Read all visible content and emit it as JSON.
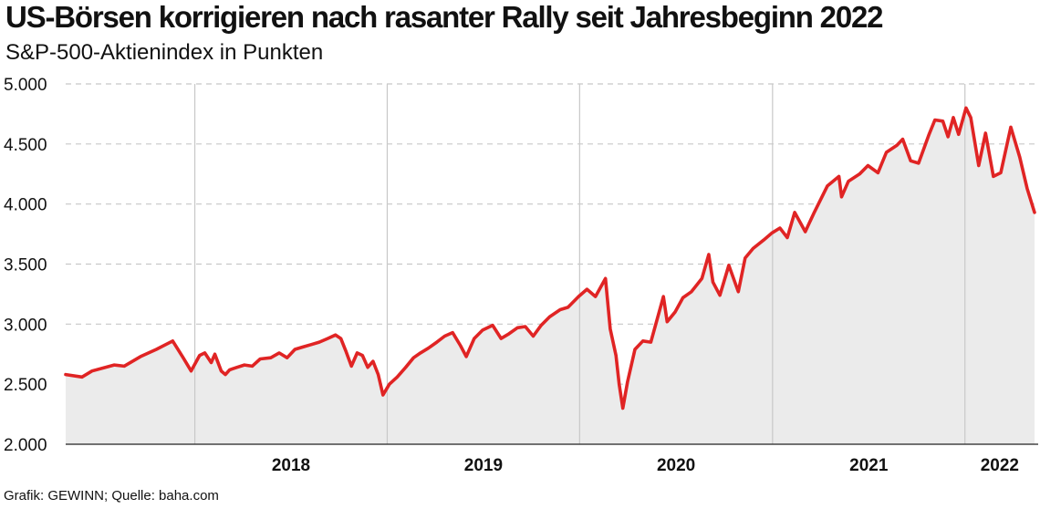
{
  "header": {
    "title": "US-Börsen korrigieren nach rasanter Rally seit Jahresbeginn 2022",
    "subtitle": "S&P-500-Aktienindex in Punkten"
  },
  "footer": {
    "source": "Grafik: GEWINN; Quelle: baha.com"
  },
  "colors": {
    "line": "#e02424",
    "area": "#ebebeb",
    "grid": "#c8c8c8",
    "axis": "#222222"
  },
  "chart_data": {
    "type": "area",
    "title": "US-Börsen korrigieren nach rasanter Rally seit Jahresbeginn 2022",
    "subtitle": "S&P-500-Aktienindex in Punkten",
    "ylim": [
      2000,
      5000
    ],
    "y_ticks": [
      2000,
      2500,
      3000,
      3500,
      4000,
      4500,
      5000
    ],
    "y_tick_labels": [
      "2.000",
      "2.500",
      "3.000",
      "3.500",
      "4.000",
      "4.500",
      "5.000"
    ],
    "x_tick_labels": [
      "2018",
      "2019",
      "2020",
      "2021",
      "2022"
    ],
    "xlim": [
      "2017-05-01",
      "2022-05-13"
    ],
    "year_boundaries": [
      "2018-01-01",
      "2019-01-01",
      "2020-01-01",
      "2021-01-01",
      "2022-01-01"
    ],
    "grid": true,
    "series": [
      {
        "points": [
          [
            "2017-05-01",
            2580
          ],
          [
            "2017-06-01",
            2560
          ],
          [
            "2017-06-20",
            2610
          ],
          [
            "2017-08-01",
            2660
          ],
          [
            "2017-08-20",
            2650
          ],
          [
            "2017-09-20",
            2730
          ],
          [
            "2017-10-20",
            2790
          ],
          [
            "2017-11-20",
            2860
          ],
          [
            "2017-12-10",
            2720
          ],
          [
            "2017-12-25",
            2610
          ],
          [
            "2018-01-10",
            2740
          ],
          [
            "2018-01-20",
            2760
          ],
          [
            "2018-02-01",
            2680
          ],
          [
            "2018-02-08",
            2750
          ],
          [
            "2018-02-20",
            2610
          ],
          [
            "2018-02-28",
            2580
          ],
          [
            "2018-03-08",
            2620
          ],
          [
            "2018-03-22",
            2640
          ],
          [
            "2018-04-05",
            2660
          ],
          [
            "2018-04-20",
            2650
          ],
          [
            "2018-05-05",
            2710
          ],
          [
            "2018-05-25",
            2720
          ],
          [
            "2018-06-10",
            2760
          ],
          [
            "2018-06-25",
            2720
          ],
          [
            "2018-07-10",
            2790
          ],
          [
            "2018-07-25",
            2810
          ],
          [
            "2018-08-10",
            2830
          ],
          [
            "2018-08-25",
            2850
          ],
          [
            "2018-09-10",
            2880
          ],
          [
            "2018-09-25",
            2910
          ],
          [
            "2018-10-05",
            2880
          ],
          [
            "2018-10-15",
            2770
          ],
          [
            "2018-10-25",
            2650
          ],
          [
            "2018-11-05",
            2760
          ],
          [
            "2018-11-15",
            2740
          ],
          [
            "2018-11-25",
            2640
          ],
          [
            "2018-12-05",
            2690
          ],
          [
            "2018-12-15",
            2580
          ],
          [
            "2018-12-24",
            2410
          ],
          [
            "2019-01-05",
            2500
          ],
          [
            "2019-01-20",
            2560
          ],
          [
            "2019-02-05",
            2640
          ],
          [
            "2019-02-20",
            2720
          ],
          [
            "2019-03-05",
            2760
          ],
          [
            "2019-03-20",
            2800
          ],
          [
            "2019-04-05",
            2850
          ],
          [
            "2019-04-20",
            2900
          ],
          [
            "2019-05-05",
            2930
          ],
          [
            "2019-05-20",
            2820
          ],
          [
            "2019-05-31",
            2730
          ],
          [
            "2019-06-15",
            2880
          ],
          [
            "2019-07-01",
            2950
          ],
          [
            "2019-07-20",
            2990
          ],
          [
            "2019-08-05",
            2880
          ],
          [
            "2019-08-20",
            2920
          ],
          [
            "2019-09-05",
            2970
          ],
          [
            "2019-09-20",
            2980
          ],
          [
            "2019-10-05",
            2900
          ],
          [
            "2019-10-20",
            2990
          ],
          [
            "2019-11-05",
            3060
          ],
          [
            "2019-11-25",
            3120
          ],
          [
            "2019-12-10",
            3140
          ],
          [
            "2019-12-30",
            3230
          ],
          [
            "2020-01-15",
            3290
          ],
          [
            "2020-01-31",
            3230
          ],
          [
            "2020-02-19",
            3380
          ],
          [
            "2020-02-28",
            2960
          ],
          [
            "2020-03-10",
            2740
          ],
          [
            "2020-03-16",
            2500
          ],
          [
            "2020-03-23",
            2300
          ],
          [
            "2020-04-01",
            2520
          ],
          [
            "2020-04-15",
            2790
          ],
          [
            "2020-04-30",
            2860
          ],
          [
            "2020-05-15",
            2850
          ],
          [
            "2020-06-08",
            3230
          ],
          [
            "2020-06-15",
            3020
          ],
          [
            "2020-06-30",
            3100
          ],
          [
            "2020-07-15",
            3220
          ],
          [
            "2020-07-31",
            3270
          ],
          [
            "2020-08-20",
            3380
          ],
          [
            "2020-09-02",
            3580
          ],
          [
            "2020-09-10",
            3350
          ],
          [
            "2020-09-23",
            3240
          ],
          [
            "2020-10-10",
            3490
          ],
          [
            "2020-10-28",
            3270
          ],
          [
            "2020-11-10",
            3550
          ],
          [
            "2020-11-25",
            3630
          ],
          [
            "2020-12-15",
            3700
          ],
          [
            "2020-12-31",
            3760
          ],
          [
            "2021-01-15",
            3800
          ],
          [
            "2021-01-29",
            3720
          ],
          [
            "2021-02-12",
            3930
          ],
          [
            "2021-03-04",
            3770
          ],
          [
            "2021-03-20",
            3920
          ],
          [
            "2021-04-15",
            4150
          ],
          [
            "2021-05-07",
            4230
          ],
          [
            "2021-05-12",
            4060
          ],
          [
            "2021-05-25",
            4190
          ],
          [
            "2021-06-15",
            4250
          ],
          [
            "2021-07-01",
            4320
          ],
          [
            "2021-07-20",
            4260
          ],
          [
            "2021-08-05",
            4430
          ],
          [
            "2021-08-25",
            4490
          ],
          [
            "2021-09-05",
            4540
          ],
          [
            "2021-09-20",
            4360
          ],
          [
            "2021-10-05",
            4340
          ],
          [
            "2021-10-25",
            4580
          ],
          [
            "2021-11-05",
            4700
          ],
          [
            "2021-11-20",
            4690
          ],
          [
            "2021-11-30",
            4560
          ],
          [
            "2021-12-10",
            4720
          ],
          [
            "2021-12-20",
            4580
          ],
          [
            "2022-01-03",
            4800
          ],
          [
            "2022-01-12",
            4720
          ],
          [
            "2022-01-27",
            4320
          ],
          [
            "2022-02-09",
            4590
          ],
          [
            "2022-02-24",
            4230
          ],
          [
            "2022-03-10",
            4260
          ],
          [
            "2022-03-29",
            4640
          ],
          [
            "2022-04-15",
            4390
          ],
          [
            "2022-04-29",
            4130
          ],
          [
            "2022-05-13",
            3930
          ]
        ]
      }
    ]
  }
}
